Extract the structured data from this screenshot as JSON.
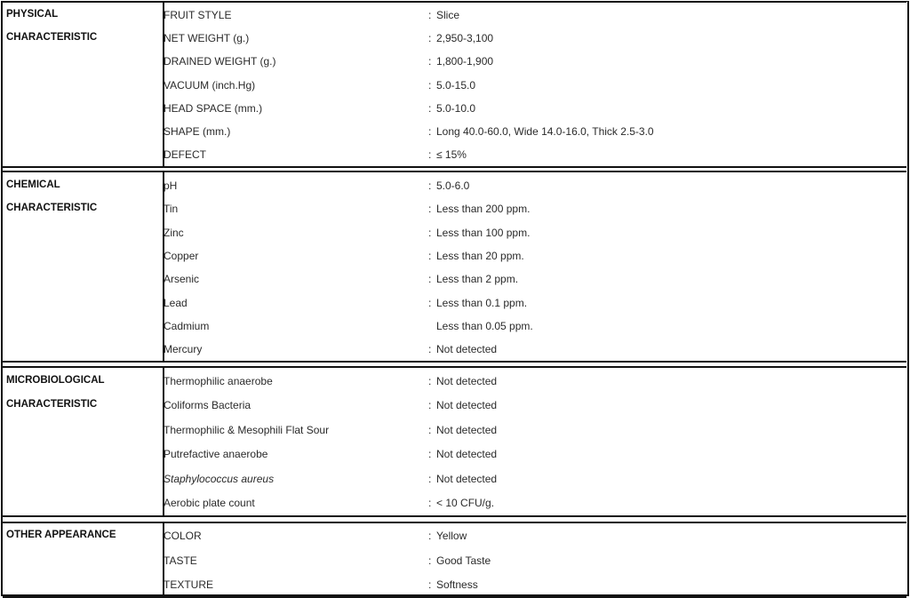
{
  "sections": [
    {
      "category_lines": [
        "PHYSICAL",
        "CHARACTERISTIC"
      ],
      "rows": [
        {
          "label": "FRUIT STYLE",
          "colon": ":",
          "value": "Slice"
        },
        {
          "label": "NET WEIGHT (g.)",
          "colon": ":",
          "value": "2,950-3,100"
        },
        {
          "label": "DRAINED WEIGHT (g.)",
          "colon": ":",
          "value": "1,800-1,900"
        },
        {
          "label": "VACUUM (inch.Hg)",
          "colon": ":",
          "value": "5.0-15.0"
        },
        {
          "label": "HEAD SPACE (mm.)",
          "colon": ":",
          "value": "5.0-10.0"
        },
        {
          "label": "SHAPE (mm.)",
          "colon": ":",
          "value": "Long 40.0-60.0, Wide 14.0-16.0, Thick 2.5-3.0"
        },
        {
          "label": "DEFECT",
          "colon": ":",
          "value": "≤ 15%"
        }
      ]
    },
    {
      "category_lines": [
        "CHEMICAL",
        "CHARACTERISTIC"
      ],
      "rows": [
        {
          "label": "pH",
          "colon": ":",
          "value": "5.0-6.0"
        },
        {
          "label": "Tin",
          "colon": ":",
          "value": "Less than 200 ppm."
        },
        {
          "label": "Zinc",
          "colon": ":",
          "value": "Less than 100 ppm."
        },
        {
          "label": "Copper",
          "colon": ":",
          "value": "Less than 20 ppm."
        },
        {
          "label": "Arsenic",
          "colon": ":",
          "value": "Less than 2 ppm."
        },
        {
          "label": "Lead",
          "colon": ":",
          "value": "Less than 0.1 ppm."
        },
        {
          "label": "Cadmium",
          "colon": "",
          "value": "Less than 0.05 ppm."
        },
        {
          "label": "Mercury",
          "colon": ":",
          "value": "Not detected"
        }
      ]
    },
    {
      "category_lines": [
        "MICROBIOLOGICAL",
        "CHARACTERISTIC"
      ],
      "rows": [
        {
          "label": "Thermophilic anaerobe",
          "colon": ":",
          "value": "Not detected"
        },
        {
          "label": "Coliforms Bacteria",
          "colon": ":",
          "value": "Not detected"
        },
        {
          "label": "Thermophilic & Mesophili Flat Sour",
          "colon": ":",
          "value": "Not detected"
        },
        {
          "label": "Putrefactive anaerobe",
          "colon": ":",
          "value": "Not detected"
        },
        {
          "label": "Staphylococcus aureus",
          "colon": ":",
          "value": "Not detected",
          "italic": true
        },
        {
          "label": "Aerobic plate count",
          "colon": ":",
          "value": "< 10 CFU/g."
        }
      ]
    },
    {
      "category_lines": [
        "OTHER APPEARANCE"
      ],
      "rows": [
        {
          "label": "COLOR",
          "colon": ":",
          "value": "Yellow"
        },
        {
          "label": "TASTE",
          "colon": ":",
          "value": "Good Taste"
        },
        {
          "label": "TEXTURE",
          "colon": ":",
          "value": "Softness"
        }
      ]
    }
  ]
}
